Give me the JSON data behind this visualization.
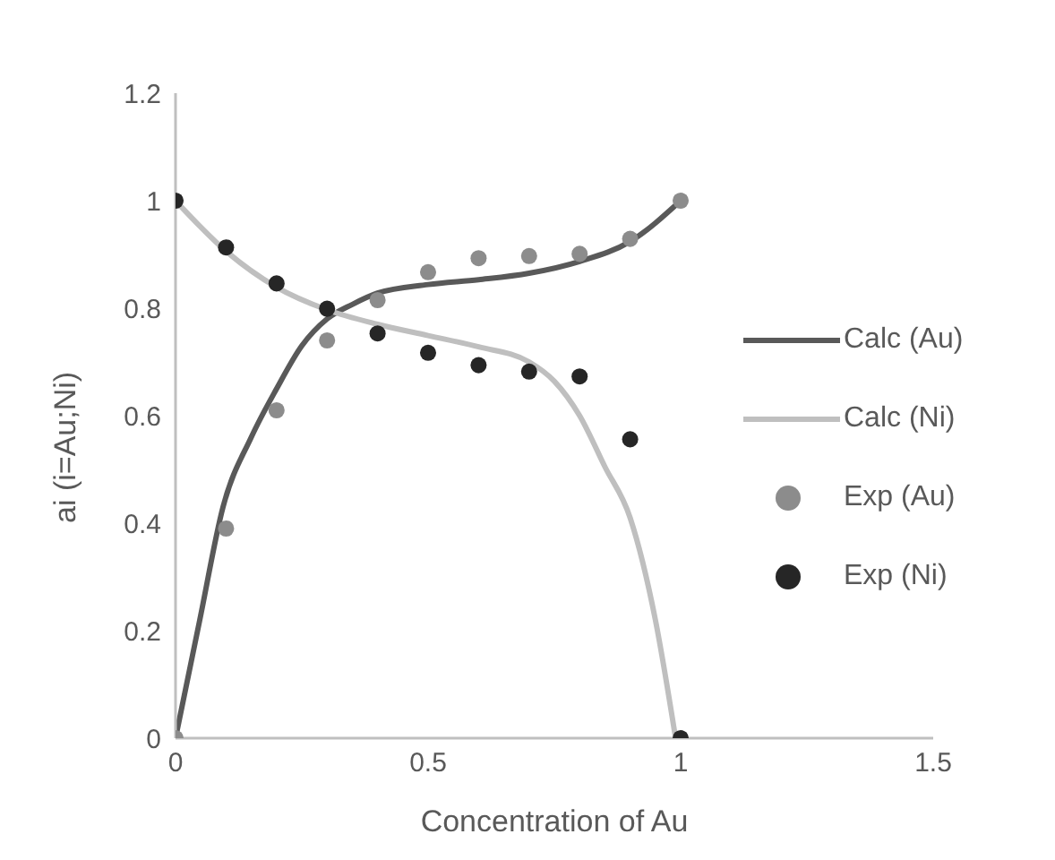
{
  "chart_data": {
    "type": "scatter",
    "xlabel": "Concentration of Au",
    "ylabel": "ai (i=Au;Ni)",
    "xlim": [
      0,
      1.5
    ],
    "xticks": [
      0,
      0.5,
      1,
      1.5
    ],
    "ylim": [
      0,
      1.2
    ],
    "yticks": [
      0,
      0.2,
      0.4,
      0.6,
      0.8,
      1,
      1.2
    ],
    "grid": false,
    "legend": "right",
    "series": [
      {
        "name": "Calc (Au)",
        "type": "line",
        "marker": "none",
        "color": "#595959",
        "x": [
          0,
          0.048,
          0.094,
          0.15,
          0.2,
          0.25,
          0.3,
          0.35,
          0.4,
          0.5,
          0.6,
          0.7,
          0.8,
          0.9,
          1
        ],
        "values": [
          0,
          0.22,
          0.43,
          0.56,
          0.65,
          0.73,
          0.78,
          0.807,
          0.828,
          0.844,
          0.853,
          0.865,
          0.887,
          0.924,
          1
        ]
      },
      {
        "name": "Calc (Ni)",
        "type": "line",
        "marker": "none",
        "color": "#bfbfbf",
        "x": [
          0,
          0.1,
          0.2,
          0.3,
          0.4,
          0.5,
          0.6,
          0.7,
          0.75,
          0.8,
          0.85,
          0.9,
          0.95,
          0.99
        ],
        "values": [
          1,
          0.906,
          0.839,
          0.797,
          0.77,
          0.749,
          0.728,
          0.7,
          0.664,
          0.6,
          0.505,
          0.41,
          0.22,
          0
        ]
      },
      {
        "name": "Exp (Au)",
        "marker": "circle",
        "color": "#8c8c8c",
        "x": [
          0,
          0.1,
          0.2,
          0.3,
          0.4,
          0.5,
          0.6,
          0.7,
          0.8,
          0.9,
          1
        ],
        "values": [
          0,
          0.39,
          0.61,
          0.74,
          0.815,
          0.867,
          0.893,
          0.897,
          0.901,
          0.929,
          1
        ]
      },
      {
        "name": "Exp (Ni)",
        "marker": "circle",
        "color": "#262626",
        "x": [
          0,
          0.1,
          0.2,
          0.3,
          0.4,
          0.5,
          0.6,
          0.7,
          0.8,
          0.9,
          1
        ],
        "values": [
          1,
          0.913,
          0.846,
          0.799,
          0.753,
          0.717,
          0.694,
          0.682,
          0.673,
          0.556,
          0
        ]
      }
    ]
  }
}
